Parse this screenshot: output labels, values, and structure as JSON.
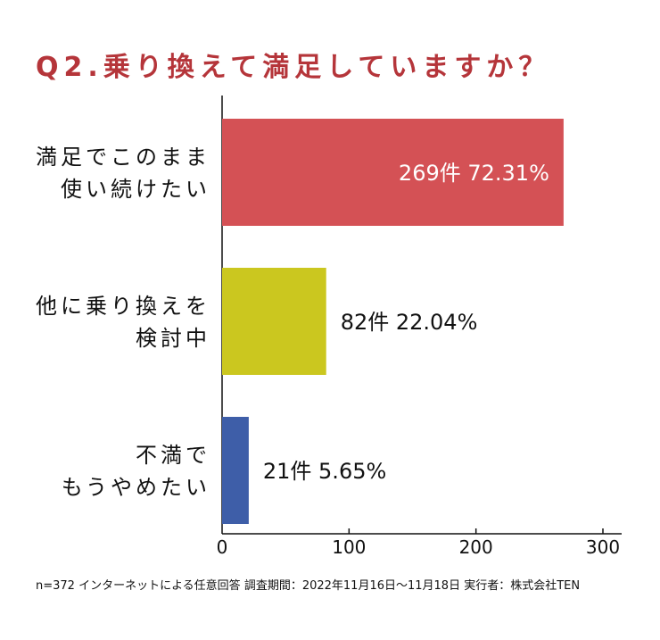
{
  "chart_data": {
    "type": "bar",
    "orientation": "horizontal",
    "title": "Q2.乗り換えて満足していますか？",
    "categories": [
      [
        "満足でこのまま",
        "使い続けたい"
      ],
      [
        "他に乗り換えを",
        "検討中"
      ],
      [
        "不満で",
        "もうやめたい"
      ]
    ],
    "values": [
      269,
      82,
      21
    ],
    "value_labels": [
      "269件 72.31%",
      "82件 22.04%",
      "21件 5.65%"
    ],
    "colors": [
      "#d45155",
      "#cbc71f",
      "#3e5ea8"
    ],
    "title_color": "#b5353a",
    "xlim": [
      0,
      300
    ],
    "xticks": [
      0,
      100,
      200,
      300
    ],
    "xlabel": "",
    "ylabel": "",
    "footnote": "n=372 インターネットによる任意回答 調査期間：2022年11月16日〜11月18日 実行者：株式会社TEN"
  }
}
